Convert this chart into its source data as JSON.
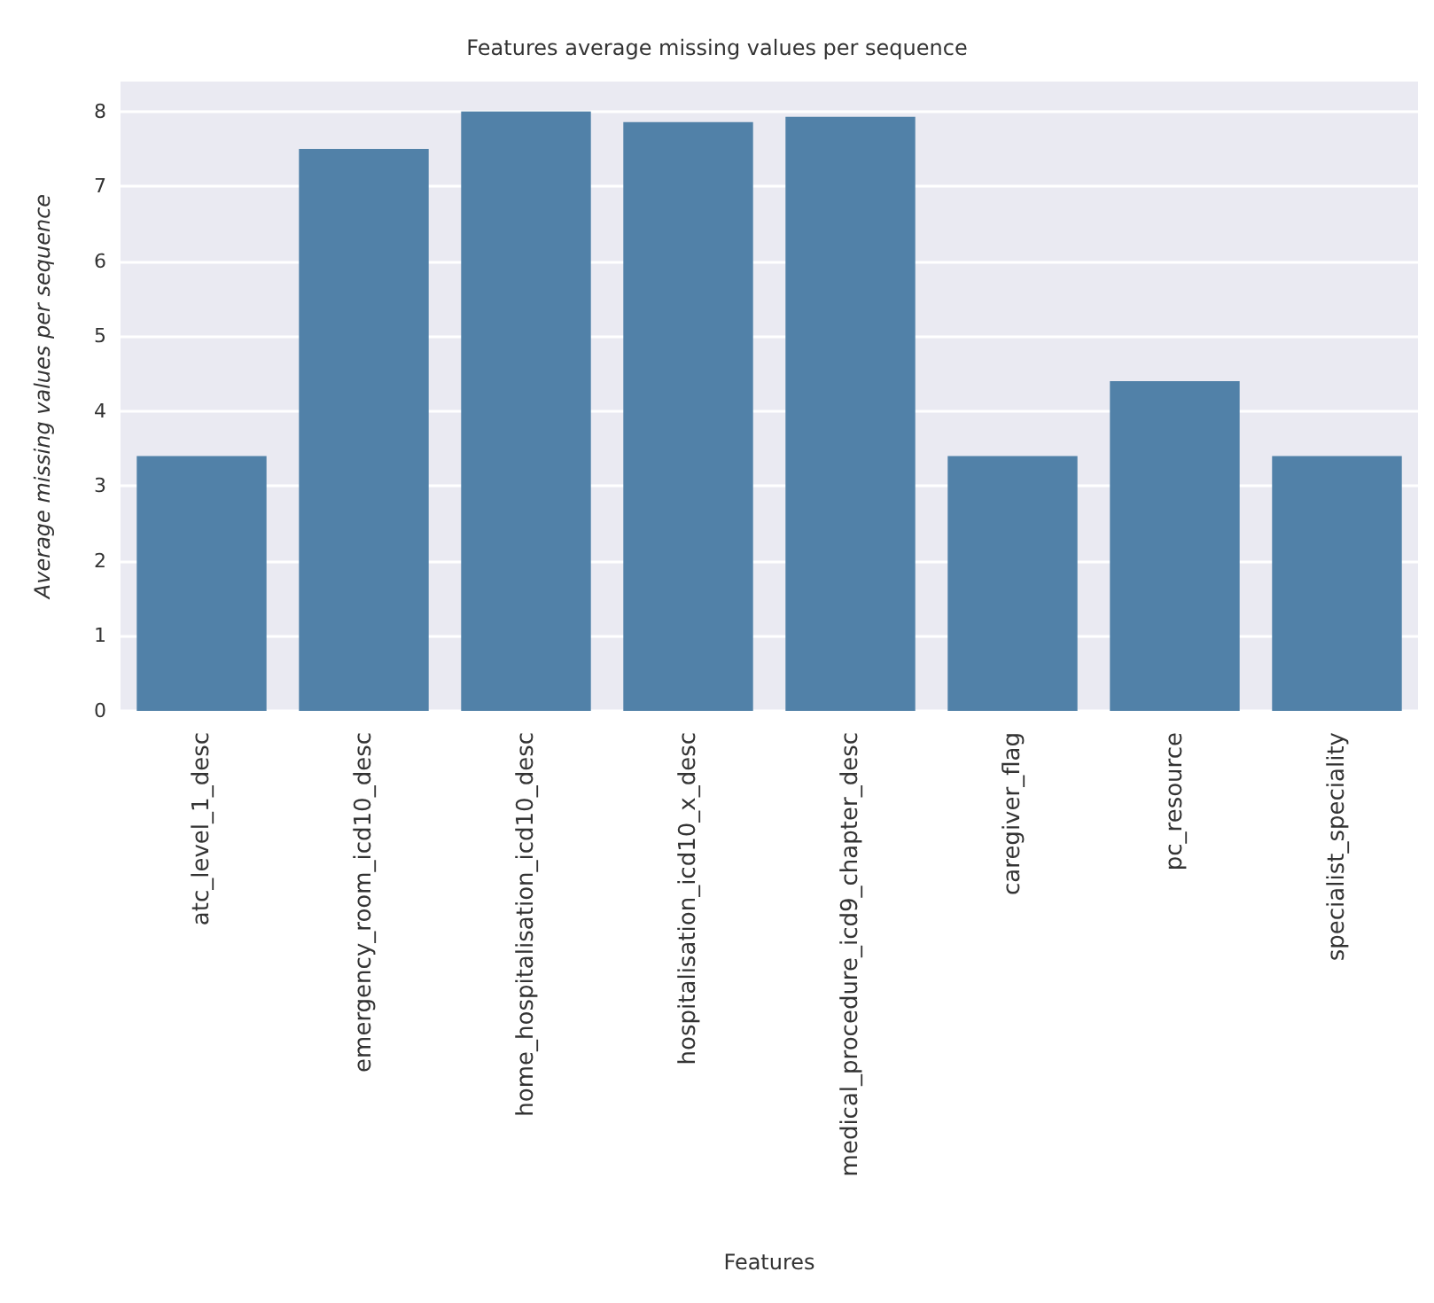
{
  "chart_data": {
    "type": "bar",
    "title": "Features average missing values per sequence",
    "xlabel": "Features",
    "ylabel": "Average missing values per sequence",
    "categories": [
      "atc_level_1_desc",
      "emergency_room_icd10_desc",
      "home_hospitalisation_icd10_desc",
      "hospitalisation_icd10_x_desc",
      "medical_procedure_icd9_chapter_desc",
      "caregiver_flag",
      "pc_resource",
      "specialist_speciality"
    ],
    "values": [
      3.4,
      7.5,
      8.0,
      7.86,
      7.93,
      3.4,
      4.4,
      3.4
    ],
    "color": "#5181a8",
    "ylim": [
      0,
      8.4
    ],
    "yticks": [
      0,
      1,
      2,
      3,
      4,
      5,
      6,
      7,
      8
    ],
    "grid": "y"
  }
}
